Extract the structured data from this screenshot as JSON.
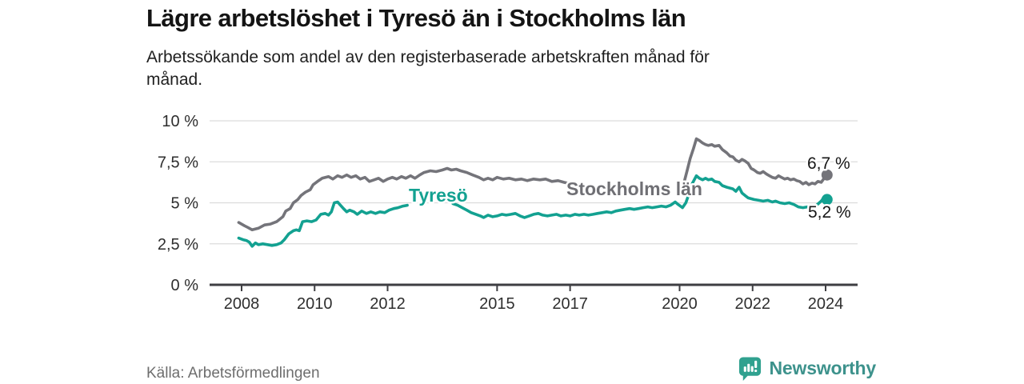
{
  "header": {
    "title": "Lägre arbetslöshet i Tyresö än i Stockholms län",
    "subtitle_line1": "Arbetssökande som andel av den registerbaserade arbetskraften månad för",
    "subtitle_line2": "månad."
  },
  "footer": {
    "source": "Källa: Arbetsförmedlingen",
    "brand": "Newsworthy",
    "brand_color": "#3d928c",
    "brand_icon": "bar-chart-speech-bubble"
  },
  "colors": {
    "tyreso_line": "#13a191",
    "stockholm_line": "#74747a",
    "stockholm_label": "#6f6f74",
    "gridline": "#dcdcdc",
    "axis": "#3e3e42",
    "end_label_text": "#161616"
  },
  "chart_data": {
    "type": "line",
    "title": "Lägre arbetslöshet i Tyresö än i Stockholms län",
    "subtitle": "Arbetssökande som andel av den registerbaserade arbetskraften månad för månad.",
    "unit": "%",
    "x_axis": {
      "ticks": [
        2008,
        2010,
        2012,
        2015,
        2017,
        2020,
        2022,
        2024
      ],
      "range_years": [
        2007.1,
        2024.9
      ],
      "grid": false
    },
    "y_axis": {
      "ticks": [
        0,
        2.5,
        5,
        7.5,
        10
      ],
      "tick_labels": [
        "0 %",
        "2,5 %",
        "5 %",
        "7,5 %",
        "10 %"
      ],
      "range": [
        0,
        10
      ],
      "grid": true
    },
    "legend_position": "inline-labels-on-lines",
    "series": [
      {
        "name": "Stockholms län",
        "color": "#74747a",
        "end_label": "6,7 %",
        "end_value": 6.7,
        "note": "line hidden behind its name label from ~2017 to early 2020",
        "segments": [
          [
            [
              2007.92,
              3.8
            ],
            [
              2008.08,
              3.6
            ],
            [
              2008.17,
              3.5
            ],
            [
              2008.29,
              3.35
            ],
            [
              2008.46,
              3.45
            ],
            [
              2008.63,
              3.65
            ],
            [
              2008.79,
              3.7
            ],
            [
              2008.96,
              3.85
            ],
            [
              2009.13,
              4.15
            ],
            [
              2009.21,
              4.5
            ],
            [
              2009.33,
              4.65
            ],
            [
              2009.42,
              5.0
            ],
            [
              2009.54,
              5.2
            ],
            [
              2009.63,
              5.45
            ],
            [
              2009.75,
              5.65
            ],
            [
              2009.88,
              5.8
            ],
            [
              2009.96,
              6.1
            ],
            [
              2010.08,
              6.3
            ],
            [
              2010.21,
              6.5
            ],
            [
              2010.38,
              6.6
            ],
            [
              2010.5,
              6.45
            ],
            [
              2010.63,
              6.65
            ],
            [
              2010.75,
              6.55
            ],
            [
              2010.88,
              6.7
            ],
            [
              2011.0,
              6.55
            ],
            [
              2011.13,
              6.65
            ],
            [
              2011.25,
              6.45
            ],
            [
              2011.38,
              6.55
            ],
            [
              2011.5,
              6.3
            ],
            [
              2011.63,
              6.4
            ],
            [
              2011.75,
              6.5
            ],
            [
              2011.88,
              6.3
            ],
            [
              2012.0,
              6.45
            ],
            [
              2012.13,
              6.55
            ],
            [
              2012.25,
              6.45
            ],
            [
              2012.38,
              6.6
            ],
            [
              2012.5,
              6.5
            ],
            [
              2012.63,
              6.65
            ],
            [
              2012.75,
              6.5
            ],
            [
              2012.88,
              6.7
            ],
            [
              2013.0,
              6.85
            ],
            [
              2013.17,
              6.95
            ],
            [
              2013.33,
              6.9
            ],
            [
              2013.5,
              7.0
            ],
            [
              2013.63,
              7.1
            ],
            [
              2013.75,
              7.0
            ],
            [
              2013.88,
              7.05
            ],
            [
              2014.0,
              6.95
            ],
            [
              2014.17,
              6.85
            ],
            [
              2014.33,
              6.7
            ],
            [
              2014.5,
              6.55
            ],
            [
              2014.63,
              6.4
            ],
            [
              2014.75,
              6.5
            ],
            [
              2014.88,
              6.4
            ],
            [
              2015.0,
              6.55
            ],
            [
              2015.17,
              6.45
            ],
            [
              2015.33,
              6.5
            ],
            [
              2015.5,
              6.4
            ],
            [
              2015.67,
              6.45
            ],
            [
              2015.83,
              6.35
            ],
            [
              2016.0,
              6.45
            ],
            [
              2016.17,
              6.4
            ],
            [
              2016.33,
              6.45
            ],
            [
              2016.5,
              6.3
            ],
            [
              2016.67,
              6.35
            ],
            [
              2016.83,
              6.25
            ],
            [
              2016.92,
              6.2
            ]
          ],
          [
            [
              2020.13,
              6.3
            ],
            [
              2020.21,
              7.0
            ],
            [
              2020.29,
              7.7
            ],
            [
              2020.38,
              8.3
            ],
            [
              2020.46,
              8.9
            ],
            [
              2020.54,
              8.8
            ],
            [
              2020.63,
              8.65
            ],
            [
              2020.71,
              8.55
            ],
            [
              2020.79,
              8.5
            ],
            [
              2020.88,
              8.55
            ],
            [
              2020.96,
              8.45
            ],
            [
              2021.08,
              8.5
            ],
            [
              2021.17,
              8.25
            ],
            [
              2021.29,
              8.05
            ],
            [
              2021.38,
              7.85
            ],
            [
              2021.46,
              7.8
            ],
            [
              2021.54,
              7.6
            ],
            [
              2021.63,
              7.5
            ],
            [
              2021.71,
              7.65
            ],
            [
              2021.79,
              7.55
            ],
            [
              2021.88,
              7.4
            ],
            [
              2021.96,
              7.1
            ],
            [
              2022.04,
              7.0
            ],
            [
              2022.13,
              6.85
            ],
            [
              2022.21,
              6.8
            ],
            [
              2022.29,
              6.9
            ],
            [
              2022.38,
              6.75
            ],
            [
              2022.46,
              6.65
            ],
            [
              2022.54,
              6.55
            ],
            [
              2022.63,
              6.5
            ],
            [
              2022.71,
              6.65
            ],
            [
              2022.79,
              6.55
            ],
            [
              2022.88,
              6.45
            ],
            [
              2022.96,
              6.5
            ],
            [
              2023.04,
              6.4
            ],
            [
              2023.13,
              6.45
            ],
            [
              2023.21,
              6.35
            ],
            [
              2023.29,
              6.3
            ],
            [
              2023.38,
              6.15
            ],
            [
              2023.46,
              6.25
            ],
            [
              2023.54,
              6.1
            ],
            [
              2023.63,
              6.2
            ],
            [
              2023.71,
              6.15
            ],
            [
              2023.79,
              6.3
            ],
            [
              2023.88,
              6.25
            ],
            [
              2023.96,
              6.5
            ],
            [
              2024.04,
              6.7
            ]
          ]
        ]
      },
      {
        "name": "Tyresö",
        "color": "#13a191",
        "end_label": "5,2 %",
        "end_value": 5.2,
        "note": "line hidden behind its name label from ~mid 2012 to late 2013",
        "segments": [
          [
            [
              2007.92,
              2.85
            ],
            [
              2008.04,
              2.75
            ],
            [
              2008.13,
              2.7
            ],
            [
              2008.21,
              2.6
            ],
            [
              2008.29,
              2.35
            ],
            [
              2008.38,
              2.55
            ],
            [
              2008.46,
              2.45
            ],
            [
              2008.58,
              2.5
            ],
            [
              2008.71,
              2.45
            ],
            [
              2008.83,
              2.4
            ],
            [
              2008.96,
              2.45
            ],
            [
              2009.08,
              2.55
            ],
            [
              2009.17,
              2.75
            ],
            [
              2009.29,
              3.1
            ],
            [
              2009.42,
              3.3
            ],
            [
              2009.5,
              3.35
            ],
            [
              2009.58,
              3.3
            ],
            [
              2009.67,
              3.85
            ],
            [
              2009.79,
              3.9
            ],
            [
              2009.92,
              3.85
            ],
            [
              2010.04,
              3.95
            ],
            [
              2010.17,
              4.3
            ],
            [
              2010.29,
              4.35
            ],
            [
              2010.38,
              4.25
            ],
            [
              2010.46,
              4.45
            ],
            [
              2010.54,
              5.0
            ],
            [
              2010.63,
              5.05
            ],
            [
              2010.71,
              4.85
            ],
            [
              2010.79,
              4.65
            ],
            [
              2010.88,
              4.45
            ],
            [
              2010.96,
              4.55
            ],
            [
              2011.08,
              4.45
            ],
            [
              2011.17,
              4.3
            ],
            [
              2011.29,
              4.5
            ],
            [
              2011.42,
              4.35
            ],
            [
              2011.54,
              4.45
            ],
            [
              2011.67,
              4.35
            ],
            [
              2011.79,
              4.45
            ],
            [
              2011.92,
              4.4
            ],
            [
              2012.04,
              4.55
            ],
            [
              2012.17,
              4.65
            ],
            [
              2012.29,
              4.7
            ],
            [
              2012.42,
              4.8
            ],
            [
              2012.54,
              4.85
            ]
          ],
          [
            [
              2013.79,
              4.95
            ],
            [
              2013.92,
              4.85
            ],
            [
              2014.04,
              4.7
            ],
            [
              2014.17,
              4.55
            ],
            [
              2014.29,
              4.4
            ],
            [
              2014.42,
              4.3
            ],
            [
              2014.54,
              4.2
            ],
            [
              2014.63,
              4.1
            ],
            [
              2014.75,
              4.25
            ],
            [
              2014.88,
              4.15
            ],
            [
              2015.0,
              4.2
            ],
            [
              2015.13,
              4.3
            ],
            [
              2015.25,
              4.25
            ],
            [
              2015.38,
              4.3
            ],
            [
              2015.5,
              4.35
            ],
            [
              2015.63,
              4.2
            ],
            [
              2015.75,
              4.1
            ],
            [
              2015.88,
              4.2
            ],
            [
              2016.0,
              4.3
            ],
            [
              2016.13,
              4.35
            ],
            [
              2016.25,
              4.25
            ],
            [
              2016.38,
              4.2
            ],
            [
              2016.5,
              4.25
            ],
            [
              2016.63,
              4.3
            ],
            [
              2016.75,
              4.2
            ],
            [
              2016.88,
              4.25
            ],
            [
              2017.0,
              4.2
            ],
            [
              2017.13,
              4.3
            ],
            [
              2017.25,
              4.25
            ],
            [
              2017.38,
              4.3
            ],
            [
              2017.5,
              4.25
            ],
            [
              2017.63,
              4.3
            ],
            [
              2017.75,
              4.35
            ],
            [
              2017.88,
              4.4
            ],
            [
              2018.0,
              4.45
            ],
            [
              2018.13,
              4.4
            ],
            [
              2018.25,
              4.5
            ],
            [
              2018.38,
              4.55
            ],
            [
              2018.5,
              4.6
            ],
            [
              2018.63,
              4.65
            ],
            [
              2018.75,
              4.6
            ],
            [
              2018.88,
              4.65
            ],
            [
              2019.0,
              4.7
            ],
            [
              2019.13,
              4.75
            ],
            [
              2019.25,
              4.7
            ],
            [
              2019.38,
              4.75
            ],
            [
              2019.5,
              4.8
            ],
            [
              2019.63,
              4.75
            ],
            [
              2019.75,
              4.85
            ],
            [
              2019.88,
              5.05
            ],
            [
              2019.96,
              4.9
            ],
            [
              2020.08,
              4.7
            ],
            [
              2020.17,
              5.0
            ],
            [
              2020.25,
              5.5
            ],
            [
              2020.33,
              6.1
            ],
            [
              2020.46,
              6.65
            ],
            [
              2020.54,
              6.5
            ],
            [
              2020.63,
              6.4
            ],
            [
              2020.71,
              6.5
            ],
            [
              2020.79,
              6.4
            ],
            [
              2020.88,
              6.45
            ],
            [
              2020.96,
              6.3
            ],
            [
              2021.08,
              6.25
            ],
            [
              2021.17,
              6.05
            ],
            [
              2021.29,
              5.95
            ],
            [
              2021.38,
              5.9
            ],
            [
              2021.46,
              5.85
            ],
            [
              2021.54,
              5.7
            ],
            [
              2021.63,
              5.95
            ],
            [
              2021.71,
              5.6
            ],
            [
              2021.79,
              5.45
            ],
            [
              2021.88,
              5.3
            ],
            [
              2021.96,
              5.25
            ],
            [
              2022.04,
              5.2
            ],
            [
              2022.17,
              5.15
            ],
            [
              2022.29,
              5.1
            ],
            [
              2022.42,
              5.15
            ],
            [
              2022.54,
              5.05
            ],
            [
              2022.63,
              5.1
            ],
            [
              2022.75,
              5.0
            ],
            [
              2022.88,
              4.95
            ],
            [
              2023.0,
              5.0
            ],
            [
              2023.13,
              4.9
            ],
            [
              2023.25,
              4.75
            ],
            [
              2023.38,
              4.7
            ],
            [
              2023.5,
              4.75
            ],
            [
              2023.63,
              4.65
            ],
            [
              2023.75,
              4.85
            ],
            [
              2023.88,
              5.1
            ],
            [
              2023.96,
              5.35
            ],
            [
              2024.04,
              5.2
            ]
          ]
        ]
      }
    ]
  }
}
